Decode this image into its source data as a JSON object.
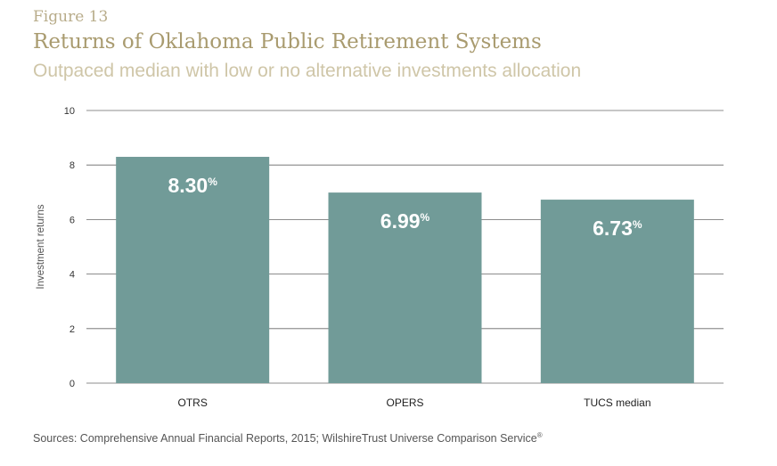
{
  "figure_label": "Figure 13",
  "title": "Returns of Oklahoma Public Retirement Systems",
  "subtitle": "Outpaced median with low or no alternative investments allocation",
  "source": "Sources: Comprehensive Annual Financial Reports, 2015; WilshireTrust Universe Comparison Service",
  "source_mark": "®",
  "colors": {
    "bar": "#719b98",
    "label": "#ffffff",
    "grid": "#666666",
    "axis_text": "#333333"
  },
  "chart_data": {
    "type": "bar",
    "categories": [
      "OTRS",
      "OPERS",
      "TUCS median"
    ],
    "values": [
      8.3,
      6.99,
      6.73
    ],
    "value_labels": [
      "8.30",
      "6.99",
      "6.73"
    ],
    "value_suffix": "%",
    "ylabel": "Investment returns",
    "xlabel": "",
    "ylim": [
      0,
      10
    ],
    "yticks": [
      0,
      2,
      4,
      6,
      8,
      10
    ],
    "grid": true
  }
}
